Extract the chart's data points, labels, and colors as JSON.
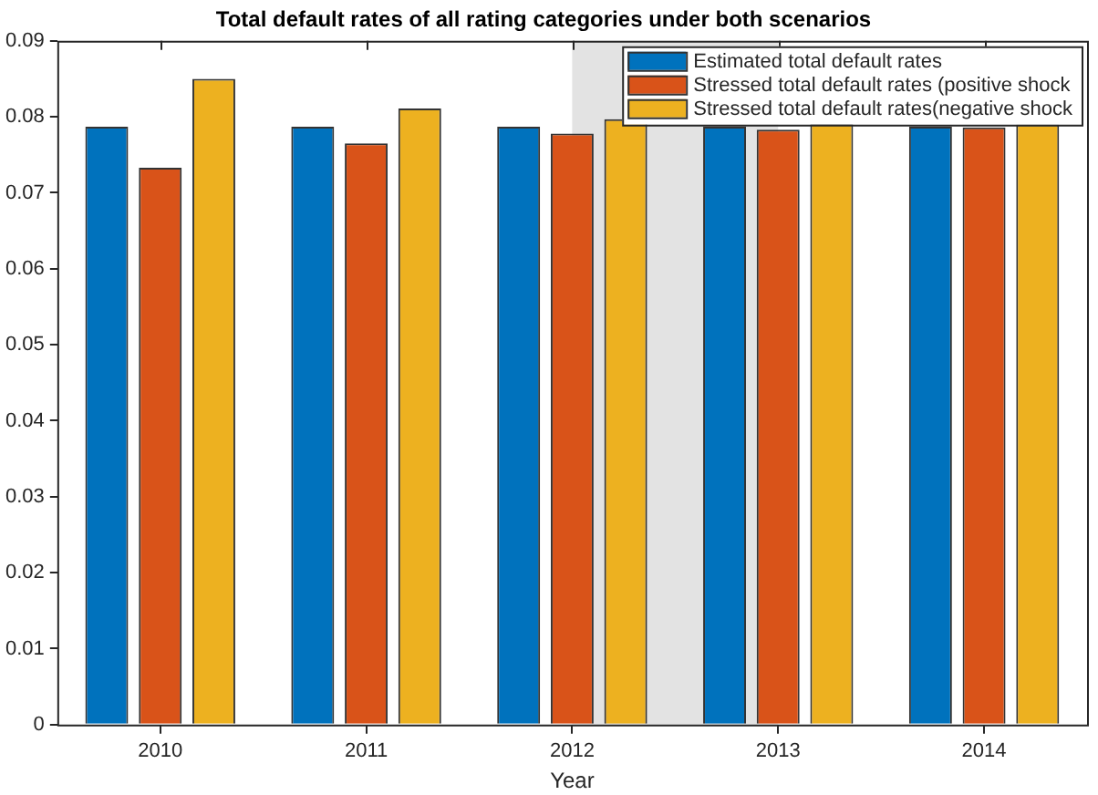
{
  "chart_data": {
    "type": "bar",
    "title": "Total default rates of all rating categories under both scenarios",
    "xlabel": "Year",
    "categories": [
      "2010",
      "2011",
      "2012",
      "2013",
      "2014"
    ],
    "series": [
      {
        "name": "Estimated total default rates",
        "color": "#0072bd",
        "values": [
          0.0787,
          0.0787,
          0.0787,
          0.0787,
          0.0787
        ]
      },
      {
        "name": "Stressed total default rates (positive shock",
        "color": "#d95319",
        "values": [
          0.0733,
          0.0765,
          0.0778,
          0.0783,
          0.0786
        ]
      },
      {
        "name": "Stressed total default rates(negative shock",
        "color": "#edb120",
        "values": [
          0.085,
          0.0811,
          0.0797,
          0.0791,
          0.079
        ]
      }
    ],
    "ylim": [
      0,
      0.09
    ],
    "yticks": [
      0,
      0.01,
      0.02,
      0.03,
      0.04,
      0.05,
      0.06,
      0.07,
      0.08,
      0.09
    ],
    "bands": [
      {
        "axis": "x",
        "from": "2012",
        "to": "2013",
        "color": "#e3e3e3"
      }
    ],
    "grid": false,
    "legend": "top right"
  }
}
